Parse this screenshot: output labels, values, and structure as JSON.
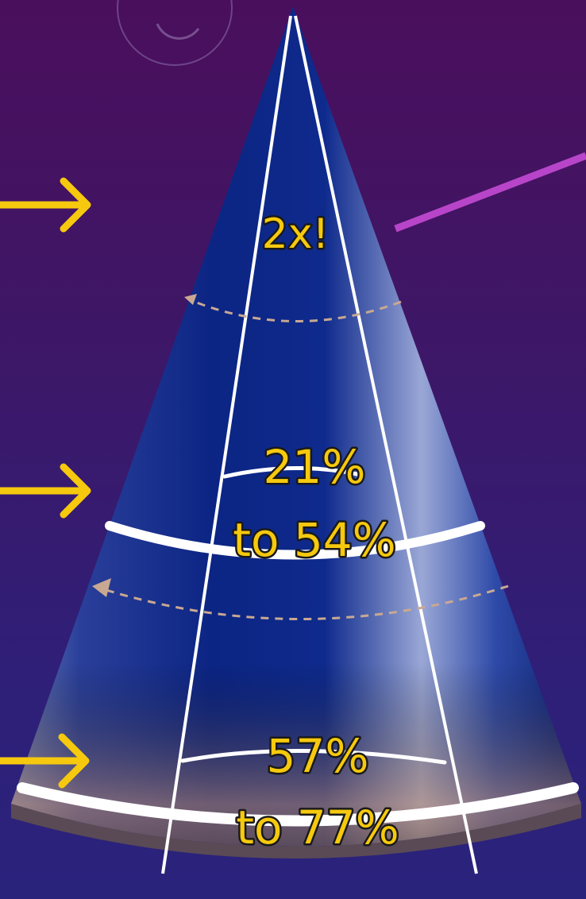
{
  "labels": {
    "top": "2x!",
    "middle_line1": "21%",
    "middle_line2": "to 54%",
    "bottom_line1": "57%",
    "bottom_line2": "to 77%"
  },
  "colors": {
    "arrow": "#f6c90e",
    "pointer": "#b845c9",
    "cone": "#0e2a8c",
    "label": "#f6c90e"
  }
}
